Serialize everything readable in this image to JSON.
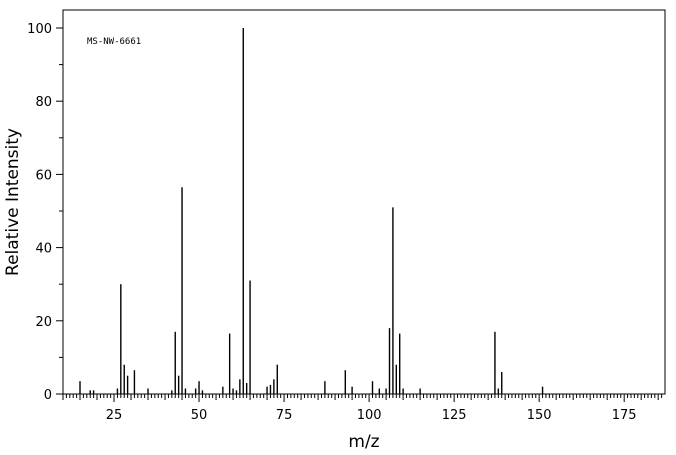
{
  "chart_data": {
    "type": "bar",
    "annotation": "MS-NW-6661",
    "xlabel": "m/z",
    "ylabel": "Relative Intensity",
    "xlim": [
      10,
      187
    ],
    "ylim": [
      0,
      100
    ],
    "x_ticks": [
      25,
      50,
      75,
      100,
      125,
      150,
      175
    ],
    "y_ticks": [
      0,
      20,
      40,
      60,
      80,
      100
    ],
    "grid": false,
    "x": [
      15,
      18,
      19,
      26,
      27,
      28,
      29,
      31,
      35,
      42,
      43,
      44,
      45,
      46,
      49,
      50,
      51,
      57,
      59,
      60,
      61,
      62,
      63,
      64,
      65,
      70,
      71,
      72,
      73,
      87,
      93,
      95,
      101,
      103,
      105,
      106,
      107,
      108,
      109,
      110,
      115,
      137,
      138,
      139,
      151
    ],
    "values": [
      3.5,
      1.0,
      1.0,
      1.5,
      30.0,
      8.0,
      5.0,
      6.5,
      1.5,
      1.0,
      17.0,
      5.0,
      56.5,
      1.5,
      1.5,
      3.5,
      1.0,
      2.0,
      16.5,
      1.5,
      1.0,
      4.0,
      100.0,
      3.0,
      31.0,
      2.0,
      2.5,
      4.0,
      8.0,
      3.5,
      6.5,
      2.0,
      3.5,
      1.5,
      1.5,
      18.0,
      51.0,
      8.0,
      16.5,
      1.5,
      1.5,
      17.0,
      1.5,
      6.0,
      2.0
    ]
  }
}
